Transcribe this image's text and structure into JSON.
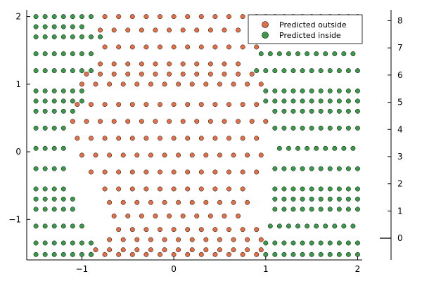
{
  "chart_data": {
    "type": "scatter",
    "title": "",
    "xlabel": "",
    "ylabel": "",
    "xlim": [
      -1.6,
      2.05
    ],
    "ylim": [
      -1.6,
      2.1
    ],
    "y2lim": [
      -0.8,
      8.4
    ],
    "grid": false,
    "legend_placement": "top-right",
    "x_ticks": [
      -1,
      0,
      1,
      2
    ],
    "y_ticks": [
      -1,
      0,
      1,
      2
    ],
    "y2_ticks": [
      0,
      1,
      2,
      3,
      4,
      5,
      6,
      7,
      8
    ],
    "x_tick_labels": [
      "−1",
      "0",
      "1",
      "2"
    ],
    "y_tick_labels": [
      "−1",
      "0",
      "1",
      "2"
    ],
    "y2_tick_labels": [
      "0",
      "1",
      "2",
      "3",
      "4",
      "5",
      "6",
      "7",
      "8"
    ],
    "secondary_series": {
      "x": [
        2.05,
        2.3
      ],
      "y": [
        0,
        0
      ]
    },
    "series": [
      {
        "name": "Predicted outside",
        "color": "#E26F46",
        "x": [
          -0.75,
          -0.6,
          -0.45,
          -0.3,
          -0.15,
          0,
          0.15,
          0.3,
          0.45,
          0.6,
          0.75,
          0.9,
          -0.8,
          -0.65,
          -0.5,
          -0.35,
          -0.2,
          -0.05,
          0.1,
          0.25,
          0.4,
          0.55,
          0.7,
          0.85,
          -0.75,
          -0.6,
          -0.45,
          -0.3,
          -0.15,
          0,
          0.15,
          0.3,
          0.45,
          0.6,
          0.75,
          0.9,
          -0.8,
          -0.65,
          -0.5,
          -0.35,
          -0.2,
          -0.05,
          0.1,
          0.25,
          0.4,
          0.55,
          0.7,
          -1.0,
          -0.85,
          -0.7,
          -0.55,
          -0.4,
          -0.25,
          -0.1,
          0.05,
          0.2,
          0.35,
          0.5,
          0.65,
          0.8,
          0.95,
          -1.05,
          -0.9,
          -0.75,
          -0.6,
          -0.45,
          -0.3,
          -0.15,
          0,
          0.15,
          0.3,
          0.45,
          0.6,
          0.75,
          0.9,
          -1.1,
          -0.95,
          -0.8,
          -0.65,
          -0.5,
          -0.35,
          -0.2,
          -0.05,
          0.1,
          0.25,
          0.4,
          0.55,
          0.7,
          0.85,
          1.0,
          -1.05,
          -0.9,
          -0.75,
          -0.6,
          -0.45,
          -0.3,
          -0.15,
          0,
          0.15,
          0.3,
          0.45,
          0.6,
          0.75,
          0.9,
          -1.0,
          -0.85,
          -0.7,
          -0.55,
          -0.4,
          -0.25,
          -0.1,
          0.05,
          0.2,
          0.35,
          0.5,
          0.65,
          0.8,
          0.95,
          -0.9,
          -0.75,
          -0.6,
          -0.45,
          -0.3,
          -0.15,
          0,
          0.15,
          0.3,
          0.45,
          0.6,
          0.75,
          0.9,
          -0.75,
          -0.6,
          -0.45,
          -0.3,
          -0.15,
          0,
          0.15,
          0.3,
          0.45,
          0.6,
          0.75,
          -0.7,
          -0.55,
          -0.4,
          -0.25,
          -0.1,
          0.05,
          0.2,
          0.35,
          0.5,
          0.65,
          0.8,
          -0.65,
          -0.5,
          -0.35,
          -0.2,
          -0.05,
          0.1,
          0.25,
          0.4,
          0.55,
          0.7,
          -0.6,
          -0.45,
          -0.3,
          -0.15,
          0,
          0.15,
          0.3,
          0.45,
          0.6,
          0.75,
          0.9,
          -0.7,
          -0.55,
          -0.4,
          -0.25,
          -0.1,
          0.05,
          0.2,
          0.35,
          0.5,
          0.65,
          0.8,
          0.95,
          -0.85,
          -0.7,
          -0.55,
          -0.4,
          -0.25,
          -0.1,
          0.05,
          0.2,
          0.35,
          0.5,
          0.65,
          0.8,
          0.95,
          -0.9,
          -0.75,
          -0.6,
          -0.45,
          -0.3,
          -0.15,
          0,
          0.15,
          0.3,
          0.45,
          0.6,
          0.75,
          0.9,
          -0.95,
          -0.8,
          -0.65,
          -0.5,
          -0.35,
          -0.2,
          -0.05,
          0.1,
          0.25,
          0.4,
          0.55,
          0.7,
          0.85
        ],
        "y": [
          2.0,
          2.0,
          2.0,
          2.0,
          2.0,
          2.0,
          2.0,
          2.0,
          2.0,
          2.0,
          2.0,
          2.0,
          1.8,
          1.8,
          1.8,
          1.8,
          1.8,
          1.8,
          1.8,
          1.8,
          1.8,
          1.8,
          1.8,
          1.8,
          1.55,
          1.55,
          1.55,
          1.55,
          1.55,
          1.55,
          1.55,
          1.55,
          1.55,
          1.55,
          1.55,
          1.55,
          1.3,
          1.3,
          1.3,
          1.3,
          1.3,
          1.3,
          1.3,
          1.3,
          1.3,
          1.3,
          1.3,
          1.0,
          1.0,
          1.0,
          1.0,
          1.0,
          1.0,
          1.0,
          1.0,
          1.0,
          1.0,
          1.0,
          1.0,
          1.0,
          1.0,
          0.7,
          0.7,
          0.7,
          0.7,
          0.7,
          0.7,
          0.7,
          0.7,
          0.7,
          0.7,
          0.7,
          0.7,
          0.7,
          0.7,
          0.45,
          0.45,
          0.45,
          0.45,
          0.45,
          0.45,
          0.45,
          0.45,
          0.45,
          0.45,
          0.45,
          0.45,
          0.45,
          0.45,
          0.45,
          0.2,
          0.2,
          0.2,
          0.2,
          0.2,
          0.2,
          0.2,
          0.2,
          0.2,
          0.2,
          0.2,
          0.2,
          0.2,
          0.2,
          -0.05,
          -0.05,
          -0.05,
          -0.05,
          -0.05,
          -0.05,
          -0.05,
          -0.05,
          -0.05,
          -0.05,
          -0.05,
          -0.05,
          -0.05,
          -0.05,
          -0.3,
          -0.3,
          -0.3,
          -0.3,
          -0.3,
          -0.3,
          -0.3,
          -0.3,
          -0.3,
          -0.3,
          -0.3,
          -0.3,
          -0.3,
          -0.55,
          -0.55,
          -0.55,
          -0.55,
          -0.55,
          -0.55,
          -0.55,
          -0.55,
          -0.55,
          -0.55,
          -0.55,
          -0.75,
          -0.75,
          -0.75,
          -0.75,
          -0.75,
          -0.75,
          -0.75,
          -0.75,
          -0.75,
          -0.75,
          -0.75,
          -0.95,
          -0.95,
          -0.95,
          -0.95,
          -0.95,
          -0.95,
          -0.95,
          -0.95,
          -0.95,
          -0.95,
          -1.15,
          -1.15,
          -1.15,
          -1.15,
          -1.15,
          -1.15,
          -1.15,
          -1.15,
          -1.15,
          -1.15,
          -1.15,
          -1.3,
          -1.3,
          -1.3,
          -1.3,
          -1.3,
          -1.3,
          -1.3,
          -1.3,
          -1.3,
          -1.3,
          -1.3,
          -1.3,
          -1.45,
          -1.45,
          -1.45,
          -1.45,
          -1.45,
          -1.45,
          -1.45,
          -1.45,
          -1.45,
          -1.45,
          -1.45,
          -1.45,
          -1.45,
          -1.52,
          -1.52,
          -1.52,
          -1.52,
          -1.52,
          -1.52,
          -1.52,
          -1.52,
          -1.52,
          -1.52,
          -1.52,
          -1.52,
          -1.52,
          1.15,
          1.15,
          1.15,
          1.15,
          1.15,
          1.15,
          1.15,
          1.15,
          1.15,
          1.15,
          1.15,
          1.15,
          1.15
        ]
      },
      {
        "name": "Predicted inside",
        "color": "#3A9A4A",
        "x": [
          -1.5,
          -1.4,
          -1.3,
          -1.2,
          -1.1,
          -1.0,
          -0.9,
          1.0,
          1.1,
          1.2,
          1.3,
          1.4,
          1.5,
          1.6,
          1.7,
          1.8,
          1.9,
          2.0,
          -1.5,
          -1.4,
          -1.3,
          -1.2,
          -1.1,
          -1.0,
          -0.9,
          1.0,
          1.1,
          1.2,
          1.3,
          1.4,
          1.5,
          1.6,
          1.7,
          1.8,
          1.9,
          2.0,
          -1.5,
          -1.4,
          -1.3,
          -1.2,
          -1.1,
          -1.0,
          1.05,
          1.15,
          1.25,
          1.35,
          1.45,
          1.55,
          1.65,
          1.75,
          1.85,
          1.95,
          -1.5,
          -1.4,
          -1.3,
          -1.2,
          -1.1,
          1.1,
          1.2,
          1.3,
          1.4,
          1.5,
          1.6,
          1.7,
          1.8,
          1.9,
          2.0,
          -1.5,
          -1.4,
          -1.3,
          -1.2,
          1.1,
          1.2,
          1.3,
          1.4,
          1.5,
          1.6,
          1.7,
          1.8,
          1.9,
          2.0,
          -1.5,
          -1.4,
          -1.3,
          -1.2,
          1.1,
          1.2,
          1.3,
          1.4,
          1.5,
          1.6,
          1.7,
          1.8,
          1.9,
          2.0,
          -1.5,
          -1.4,
          -1.3,
          -1.2,
          1.15,
          1.25,
          1.35,
          1.45,
          1.55,
          1.65,
          1.75,
          1.85,
          1.95,
          -1.5,
          -1.4,
          -1.3,
          -1.2,
          1.1,
          1.2,
          1.3,
          1.4,
          1.5,
          1.6,
          1.7,
          1.8,
          1.9,
          2.0,
          -1.5,
          -1.4,
          -1.3,
          -1.2,
          -1.1,
          1.1,
          1.2,
          1.3,
          1.4,
          1.5,
          1.6,
          1.7,
          1.8,
          1.9,
          2.0,
          -1.5,
          -1.4,
          -1.3,
          -1.2,
          -1.1,
          -1.0,
          1.0,
          1.1,
          1.2,
          1.3,
          1.4,
          1.5,
          1.6,
          1.7,
          1.8,
          1.9,
          2.0,
          -1.5,
          -1.4,
          -1.3,
          -1.2,
          -1.1,
          -1.0,
          -0.9,
          0.9,
          1.0,
          1.1,
          1.2,
          1.3,
          1.4,
          1.5,
          1.6,
          1.7,
          1.8,
          1.9,
          2.0,
          -1.5,
          -1.4,
          -1.3,
          -1.2,
          -1.1,
          -1.0,
          -0.9,
          0.95,
          1.05,
          1.15,
          1.25,
          1.35,
          1.45,
          1.55,
          1.65,
          1.75,
          1.85,
          1.95,
          -1.5,
          -1.4,
          -1.3,
          -1.2,
          -1.1,
          -1.0,
          -0.9,
          -0.8,
          0.85,
          0.95,
          1.05,
          1.15,
          1.25,
          1.35,
          1.45,
          1.55,
          1.65,
          1.75,
          1.85,
          1.95,
          -1.5,
          -1.4,
          -1.3,
          -1.2,
          -1.1,
          -1.0,
          -0.9,
          1.0,
          1.1,
          1.2,
          1.3,
          1.4,
          1.5,
          1.6,
          1.7,
          1.8,
          1.9,
          2.0,
          -1.5,
          -1.4,
          -1.3,
          -1.2,
          -1.1,
          -1.0,
          1.05,
          1.15,
          1.25,
          1.35,
          1.45,
          1.55,
          1.65,
          1.75,
          1.85,
          1.95,
          -1.5,
          -1.4,
          -1.3,
          -1.2,
          -1.1,
          1.1,
          1.2,
          1.3,
          1.4,
          1.5,
          1.6,
          1.7,
          1.8,
          1.9,
          2.0,
          -1.5,
          -1.4,
          -1.3,
          -1.2,
          -1.1,
          -1.0,
          1.0,
          1.1,
          1.2,
          1.3,
          1.4,
          1.5,
          1.6,
          1.7,
          1.8,
          1.9,
          2.0
        ],
        "y": [
          -1.52,
          -1.52,
          -1.52,
          -1.52,
          -1.52,
          -1.52,
          -1.52,
          -1.52,
          -1.52,
          -1.52,
          -1.52,
          -1.52,
          -1.52,
          -1.52,
          -1.52,
          -1.52,
          -1.52,
          -1.52,
          -1.35,
          -1.35,
          -1.35,
          -1.35,
          -1.35,
          -1.35,
          -1.35,
          -1.35,
          -1.35,
          -1.35,
          -1.35,
          -1.35,
          -1.35,
          -1.35,
          -1.35,
          -1.35,
          -1.35,
          -1.35,
          -1.1,
          -1.1,
          -1.1,
          -1.1,
          -1.1,
          -1.1,
          -1.1,
          -1.1,
          -1.1,
          -1.1,
          -1.1,
          -1.1,
          -1.1,
          -1.1,
          -1.1,
          -1.1,
          -0.85,
          -0.85,
          -0.85,
          -0.85,
          -0.85,
          -0.85,
          -0.85,
          -0.85,
          -0.85,
          -0.85,
          -0.85,
          -0.85,
          -0.85,
          -0.85,
          -0.85,
          -0.55,
          -0.55,
          -0.55,
          -0.55,
          -0.55,
          -0.55,
          -0.55,
          -0.55,
          -0.55,
          -0.55,
          -0.55,
          -0.55,
          -0.55,
          -0.55,
          -0.25,
          -0.25,
          -0.25,
          -0.25,
          -0.25,
          -0.25,
          -0.25,
          -0.25,
          -0.25,
          -0.25,
          -0.25,
          -0.25,
          -0.25,
          -0.25,
          0.05,
          0.05,
          0.05,
          0.05,
          0.05,
          0.05,
          0.05,
          0.05,
          0.05,
          0.05,
          0.05,
          0.05,
          0.05,
          0.35,
          0.35,
          0.35,
          0.35,
          0.35,
          0.35,
          0.35,
          0.35,
          0.35,
          0.35,
          0.35,
          0.35,
          0.35,
          0.35,
          0.6,
          0.6,
          0.6,
          0.6,
          0.6,
          0.6,
          0.6,
          0.6,
          0.6,
          0.6,
          0.6,
          0.6,
          0.6,
          0.6,
          0.6,
          0.9,
          0.9,
          0.9,
          0.9,
          0.9,
          0.9,
          0.9,
          0.9,
          0.9,
          0.9,
          0.9,
          0.9,
          0.9,
          0.9,
          0.9,
          0.9,
          0.9,
          1.2,
          1.2,
          1.2,
          1.2,
          1.2,
          1.2,
          1.2,
          1.2,
          1.2,
          1.2,
          1.2,
          1.2,
          1.2,
          1.2,
          1.2,
          1.2,
          1.2,
          1.2,
          1.2,
          1.45,
          1.45,
          1.45,
          1.45,
          1.45,
          1.45,
          1.45,
          1.45,
          1.45,
          1.45,
          1.45,
          1.45,
          1.45,
          1.45,
          1.45,
          1.45,
          1.45,
          1.45,
          1.7,
          1.7,
          1.7,
          1.7,
          1.7,
          1.7,
          1.7,
          1.7,
          1.7,
          1.7,
          1.7,
          1.7,
          1.7,
          1.7,
          1.7,
          1.7,
          1.7,
          1.7,
          1.7,
          1.7,
          2.0,
          2.0,
          2.0,
          2.0,
          2.0,
          2.0,
          2.0,
          2.0,
          2.0,
          2.0,
          2.0,
          2.0,
          2.0,
          2.0,
          2.0,
          2.0,
          2.0,
          2.0,
          1.85,
          1.85,
          1.85,
          1.85,
          1.85,
          1.85,
          1.85,
          1.85,
          1.85,
          1.85,
          1.85,
          1.85,
          1.85,
          1.85,
          1.85,
          1.85,
          -0.7,
          -0.7,
          -0.7,
          -0.7,
          -0.7,
          -0.7,
          -0.7,
          -0.7,
          -0.7,
          -0.7,
          -0.7,
          -0.7,
          -0.7,
          -0.7,
          -0.7,
          0.75,
          0.75,
          0.75,
          0.75,
          0.75,
          0.75,
          0.75,
          0.75,
          0.75,
          0.75,
          0.75,
          0.75,
          0.75,
          0.75,
          0.75,
          0.75,
          0.75
        ]
      }
    ]
  }
}
